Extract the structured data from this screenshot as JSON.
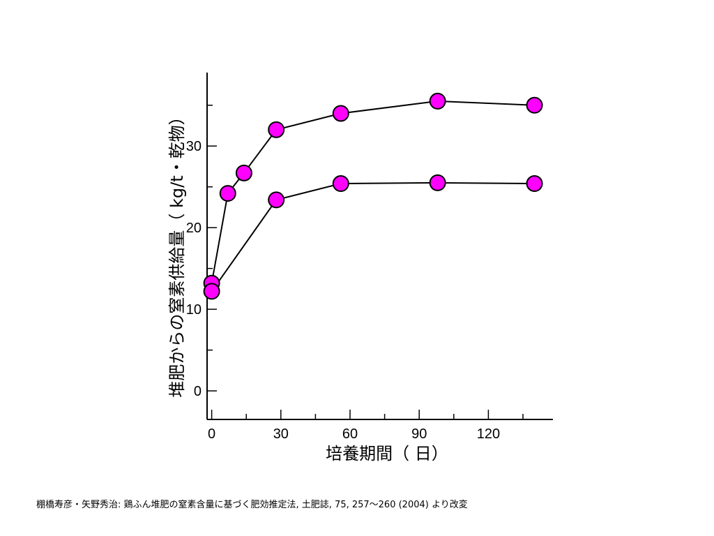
{
  "chart_data": {
    "type": "line",
    "title": "",
    "xlabel": "培養期間（ 日）",
    "ylabel": "堆肥からの窒素供給量（ kg/t・乾物）",
    "xlim": [
      -2,
      148
    ],
    "ylim": [
      -3.5,
      39
    ],
    "xticks": [
      0,
      30,
      60,
      90,
      120
    ],
    "yticks": [
      0,
      10,
      20,
      30
    ],
    "x_minor_step": 15,
    "y_minor_step": 5,
    "grid": false,
    "legend": "none",
    "series": [
      {
        "x": [
          0,
          7,
          14,
          28,
          56,
          98,
          140
        ],
        "y": [
          13.2,
          24.2,
          26.7,
          32.0,
          34.0,
          35.5,
          35.0
        ]
      },
      {
        "x": [
          0,
          28,
          56,
          98,
          140
        ],
        "y": [
          12.2,
          23.4,
          25.4,
          25.5,
          25.4
        ]
      }
    ],
    "marker_color": "#ff00ff"
  },
  "source_text": "棚橋寿彦・矢野秀治: 鶏ふん堆肥の窒素含量に基づく肥効推定法, 土肥誌, 75, 257〜260 (2004) より改変"
}
